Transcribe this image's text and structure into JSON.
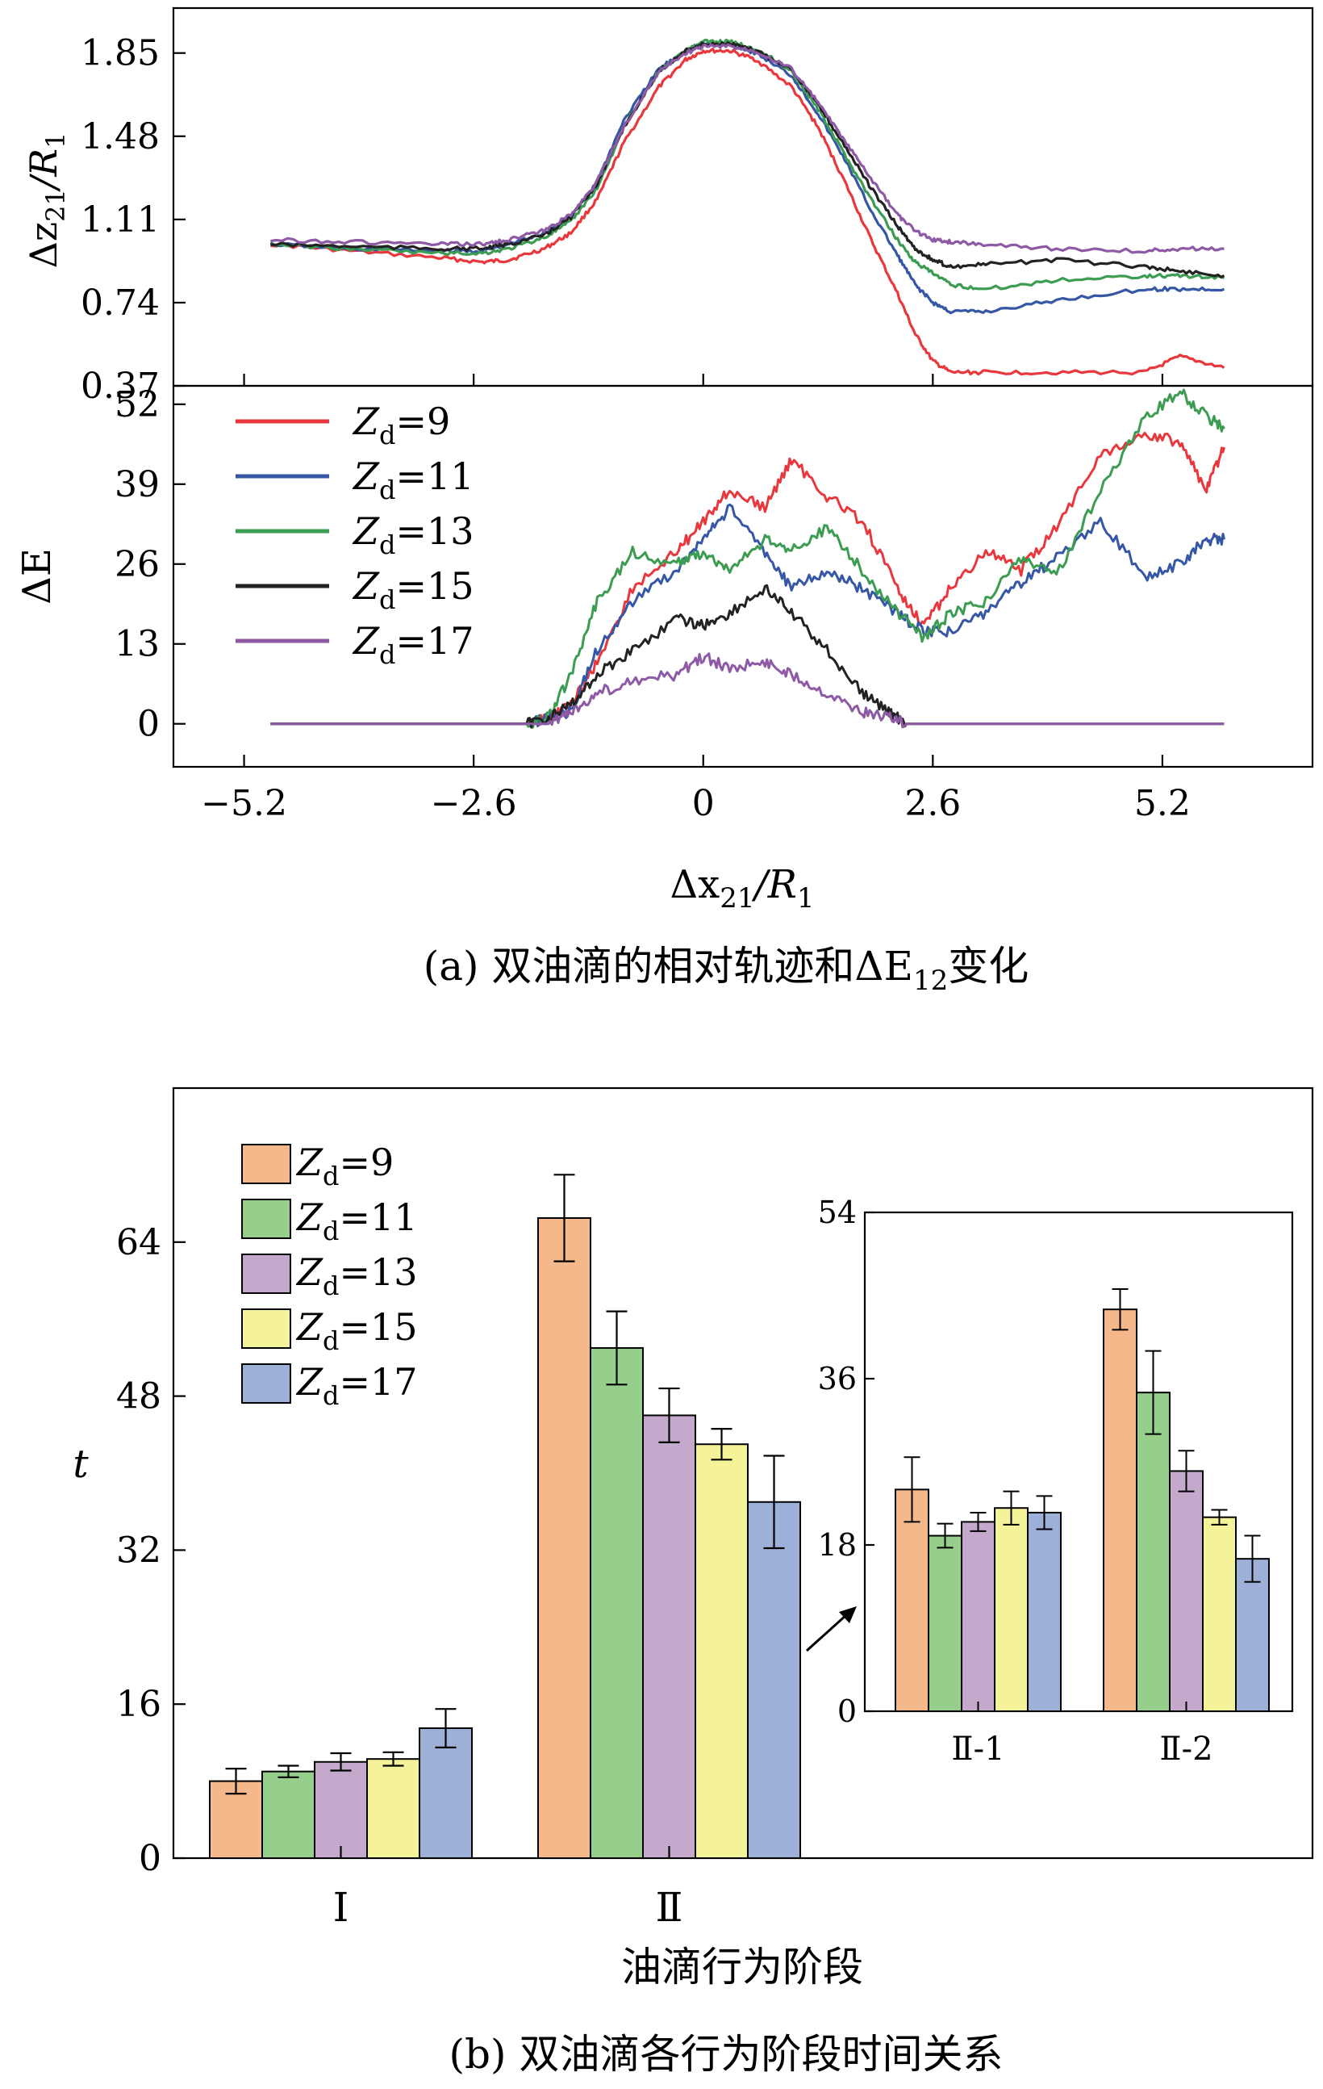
{
  "chart_data": [
    {
      "type": "line",
      "panel": "top",
      "title": "",
      "xlabel": "",
      "ylabel_main": "Δz",
      "ylabel_sub": "21",
      "ylabel_mid": "/R",
      "ylabel_sub2": "1",
      "xlim": [
        -6.0,
        6.9
      ],
      "ylim": [
        0.37,
        2.05
      ],
      "y_ticks": [
        0.37,
        0.74,
        1.11,
        1.48,
        1.85
      ],
      "y_tick_labels": [
        "0.37",
        "0.74",
        "1.11",
        "1.48",
        "1.85"
      ],
      "x_tick_positions": [
        -5.2,
        -2.6,
        0,
        2.6,
        5.2
      ],
      "series": [
        {
          "name": "Z_d=9",
          "color": "#e8383d",
          "x": [
            -4.9,
            -4.0,
            -3.0,
            -2.5,
            -2.2,
            -1.8,
            -1.5,
            -1.2,
            -0.9,
            -0.5,
            -0.2,
            0.0,
            0.3,
            0.6,
            1.0,
            1.3,
            1.6,
            1.9,
            2.2,
            2.4,
            2.6,
            2.8,
            3.2,
            4.0,
            5.0,
            5.4,
            5.9
          ],
          "y": [
            1.0,
            0.97,
            0.94,
            0.92,
            0.93,
            0.98,
            1.05,
            1.2,
            1.45,
            1.7,
            1.82,
            1.86,
            1.86,
            1.82,
            1.7,
            1.52,
            1.28,
            1.02,
            0.78,
            0.6,
            0.48,
            0.43,
            0.43,
            0.43,
            0.43,
            0.5,
            0.45
          ]
        },
        {
          "name": "Z_d=11",
          "color": "#3657a6",
          "x": [
            -4.9,
            -4.0,
            -3.0,
            -2.5,
            -2.2,
            -1.8,
            -1.5,
            -1.2,
            -0.9,
            -0.5,
            -0.2,
            0.0,
            0.3,
            0.6,
            1.0,
            1.3,
            1.6,
            1.9,
            2.2,
            2.4,
            2.6,
            2.8,
            3.2,
            4.0,
            5.0,
            5.4,
            5.9
          ],
          "y": [
            1.0,
            0.98,
            0.97,
            0.97,
            1.0,
            1.05,
            1.12,
            1.28,
            1.55,
            1.78,
            1.86,
            1.89,
            1.89,
            1.85,
            1.75,
            1.58,
            1.38,
            1.15,
            0.95,
            0.82,
            0.74,
            0.7,
            0.7,
            0.75,
            0.8,
            0.8,
            0.8
          ]
        },
        {
          "name": "Z_d=13",
          "color": "#3c9c52",
          "x": [
            -4.9,
            -4.0,
            -3.0,
            -2.5,
            -2.2,
            -1.8,
            -1.5,
            -1.2,
            -0.9,
            -0.5,
            -0.2,
            0.0,
            0.3,
            0.6,
            1.0,
            1.3,
            1.6,
            1.9,
            2.2,
            2.4,
            2.6,
            2.8,
            3.2,
            4.0,
            5.0,
            5.4,
            5.9
          ],
          "y": [
            1.0,
            0.98,
            0.96,
            0.96,
            0.98,
            1.03,
            1.1,
            1.25,
            1.52,
            1.77,
            1.86,
            1.9,
            1.9,
            1.87,
            1.77,
            1.6,
            1.4,
            1.2,
            1.02,
            0.92,
            0.87,
            0.82,
            0.8,
            0.84,
            0.86,
            0.86,
            0.85
          ]
        },
        {
          "name": "Z_d=15",
          "color": "#222222",
          "x": [
            -4.9,
            -4.0,
            -3.0,
            -2.5,
            -2.2,
            -1.8,
            -1.5,
            -1.2,
            -0.9,
            -0.5,
            -0.2,
            0.0,
            0.3,
            0.6,
            1.0,
            1.3,
            1.6,
            1.9,
            2.2,
            2.4,
            2.6,
            2.8,
            3.2,
            4.0,
            5.0,
            5.4,
            5.9
          ],
          "y": [
            1.0,
            0.99,
            0.98,
            0.98,
            1.0,
            1.04,
            1.12,
            1.27,
            1.52,
            1.77,
            1.86,
            1.89,
            1.89,
            1.86,
            1.78,
            1.62,
            1.44,
            1.25,
            1.08,
            0.98,
            0.93,
            0.9,
            0.91,
            0.93,
            0.9,
            0.88,
            0.86
          ]
        },
        {
          "name": "Z_d=17",
          "color": "#8e5aa5",
          "x": [
            -4.9,
            -4.0,
            -3.0,
            -2.5,
            -2.2,
            -1.8,
            -1.5,
            -1.2,
            -0.9,
            -0.5,
            -0.2,
            0.0,
            0.3,
            0.6,
            1.0,
            1.3,
            1.6,
            1.9,
            2.2,
            2.4,
            2.6,
            2.8,
            3.2,
            4.0,
            5.0,
            5.4,
            5.9
          ],
          "y": [
            1.02,
            1.01,
            1.0,
            1.0,
            1.02,
            1.06,
            1.13,
            1.28,
            1.52,
            1.77,
            1.85,
            1.88,
            1.88,
            1.86,
            1.78,
            1.63,
            1.46,
            1.29,
            1.13,
            1.06,
            1.02,
            1.01,
            1.0,
            0.98,
            0.97,
            0.98,
            0.98
          ]
        }
      ]
    },
    {
      "type": "line",
      "panel": "bottom",
      "ylabel": "ΔE",
      "xlabel_main": "Δx",
      "xlabel_sub": "21",
      "xlabel_mid": "/R",
      "xlabel_sub2": "1",
      "xlim": [
        -6.0,
        6.9
      ],
      "ylim": [
        -7,
        55
      ],
      "y_ticks": [
        0,
        13,
        26,
        39,
        52
      ],
      "y_tick_labels": [
        "0",
        "13",
        "26",
        "39",
        "52"
      ],
      "x_ticks": [
        -5.2,
        -2.6,
        0,
        2.6,
        5.2
      ],
      "x_tick_labels": [
        "−5.2",
        "−2.6",
        "0",
        "2.6",
        "5.2"
      ],
      "legend": [
        "Z_d=9",
        "Z_d=11",
        "Z_d=13",
        "Z_d=15",
        "Z_d=17"
      ],
      "legend_main": "Z",
      "legend_sub": "d",
      "legend_values": [
        "=9",
        "=11",
        "=13",
        "=15",
        "=17"
      ],
      "series": [
        {
          "name": "Z_d=9",
          "color": "#e8383d",
          "x": [
            -4.9,
            -2.0,
            -1.75,
            -1.5,
            -1.2,
            -0.8,
            -0.3,
            0.0,
            0.3,
            0.7,
            1.0,
            1.4,
            1.8,
            2.2,
            2.5,
            2.8,
            3.2,
            3.6,
            4.0,
            4.5,
            5.0,
            5.4,
            5.7,
            5.9
          ],
          "y": [
            0,
            0,
            1,
            3,
            10,
            22,
            28,
            33,
            38,
            35,
            43,
            37,
            33,
            22,
            16,
            22,
            28,
            25,
            32,
            44,
            47,
            46,
            38,
            45
          ]
        },
        {
          "name": "Z_d=11",
          "color": "#3657a6",
          "x": [
            -4.9,
            -2.0,
            -1.75,
            -1.5,
            -1.2,
            -0.8,
            -0.3,
            0.0,
            0.3,
            0.7,
            1.0,
            1.4,
            1.8,
            2.2,
            2.5,
            2.8,
            3.2,
            3.6,
            4.0,
            4.5,
            5.0,
            5.4,
            5.7,
            5.9
          ],
          "y": [
            0,
            0,
            1,
            2,
            12,
            20,
            25,
            30,
            35,
            28,
            22,
            25,
            22,
            18,
            15,
            15,
            18,
            23,
            27,
            33,
            24,
            26,
            30,
            30
          ]
        },
        {
          "name": "Z_d=13",
          "color": "#3c9c52",
          "x": [
            -4.9,
            -2.0,
            -1.75,
            -1.5,
            -1.2,
            -0.8,
            -0.3,
            0.0,
            0.3,
            0.7,
            1.0,
            1.4,
            1.8,
            2.2,
            2.5,
            2.8,
            3.2,
            3.6,
            4.0,
            4.5,
            5.0,
            5.4,
            5.7,
            5.9
          ],
          "y": [
            0,
            0,
            1,
            8,
            20,
            28,
            26,
            28,
            25,
            30,
            28,
            32,
            25,
            18,
            14,
            18,
            20,
            27,
            24,
            38,
            50,
            54,
            50,
            48
          ]
        },
        {
          "name": "Z_d=15",
          "color": "#222222",
          "x": [
            -4.9,
            -2.0,
            -1.75,
            -1.5,
            -1.2,
            -0.8,
            -0.3,
            0.0,
            0.3,
            0.7,
            1.0,
            1.4,
            1.8,
            2.1,
            2.3,
            2.5,
            5.9
          ],
          "y": [
            0,
            0,
            1,
            3,
            8,
            12,
            17,
            16,
            18,
            22,
            18,
            12,
            5,
            2,
            0,
            0,
            0
          ]
        },
        {
          "name": "Z_d=17",
          "color": "#8e5aa5",
          "x": [
            -4.9,
            -2.0,
            -1.75,
            -1.5,
            -1.2,
            -0.8,
            -0.3,
            0.0,
            0.3,
            0.7,
            1.0,
            1.4,
            1.8,
            2.1,
            2.3,
            2.5,
            5.9
          ],
          "y": [
            0,
            0,
            0,
            2,
            5,
            7,
            8,
            11,
            9,
            10,
            8,
            5,
            2,
            1,
            0,
            0,
            0
          ]
        }
      ]
    },
    {
      "type": "bar",
      "panel": "b-main",
      "ylabel": "t",
      "xlabel": "油滴行为阶段",
      "ylim": [
        0,
        80
      ],
      "y_ticks": [
        0,
        16,
        32,
        48,
        64
      ],
      "y_tick_labels": [
        "0",
        "16",
        "32",
        "48",
        "64"
      ],
      "categories": [
        "Ⅰ",
        "Ⅱ"
      ],
      "legend_main": "Z",
      "legend_sub": "d",
      "legend_values": [
        "=9",
        "=11",
        "=13",
        "=15",
        "=17"
      ],
      "series": [
        {
          "name": "Z_d=9",
          "color": "#f5b88b",
          "values": [
            8,
            66.5
          ],
          "errors": [
            1.3,
            4.5
          ]
        },
        {
          "name": "Z_d=11",
          "color": "#96cf8c",
          "values": [
            9,
            53
          ],
          "errors": [
            0.6,
            3.8
          ]
        },
        {
          "name": "Z_d=13",
          "color": "#c5a9cc",
          "values": [
            10,
            46
          ],
          "errors": [
            0.9,
            2.8
          ]
        },
        {
          "name": "Z_d=15",
          "color": "#f5f39a",
          "values": [
            10.3,
            43
          ],
          "errors": [
            0.7,
            1.6
          ]
        },
        {
          "name": "Z_d=17",
          "color": "#9db0d8",
          "values": [
            13.5,
            37
          ],
          "errors": [
            2.0,
            4.8
          ]
        }
      ]
    },
    {
      "type": "bar",
      "panel": "b-inset",
      "ylim": [
        0,
        54
      ],
      "y_ticks": [
        0,
        18,
        36,
        54
      ],
      "y_tick_labels": [
        "0",
        "18",
        "36",
        "54"
      ],
      "categories": [
        "Ⅱ-1",
        "Ⅱ-2"
      ],
      "series": [
        {
          "name": "Z_d=9",
          "color": "#f5b88b",
          "values": [
            24,
            43.5
          ],
          "errors": [
            3.5,
            2.2
          ]
        },
        {
          "name": "Z_d=11",
          "color": "#96cf8c",
          "values": [
            19,
            34.5
          ],
          "errors": [
            1.3,
            4.5
          ]
        },
        {
          "name": "Z_d=13",
          "color": "#c5a9cc",
          "values": [
            20.5,
            26
          ],
          "errors": [
            1.0,
            2.2
          ]
        },
        {
          "name": "Z_d=15",
          "color": "#f5f39a",
          "values": [
            22,
            21
          ],
          "errors": [
            1.8,
            0.8
          ]
        },
        {
          "name": "Z_d=17",
          "color": "#9db0d8",
          "values": [
            21.5,
            16.5
          ],
          "errors": [
            1.8,
            2.5
          ]
        }
      ]
    }
  ],
  "captions": {
    "a_prefix": "(a) 双油滴的相对轨迹和",
    "a_symbol": "ΔE",
    "a_sub": "12",
    "a_suffix": "变化",
    "b": "(b) 双油滴各行为阶段时间关系"
  }
}
